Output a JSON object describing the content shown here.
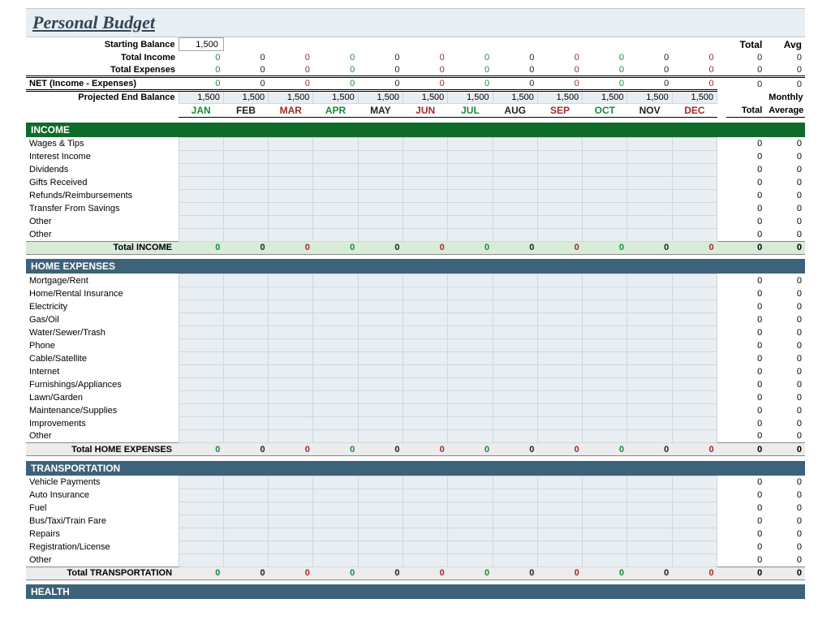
{
  "title": "Personal Budget",
  "colors": {
    "title_bg": "#e8eef2",
    "title_text": "#334455",
    "income_hdr": "#0e6b2a",
    "section_hdr": "#3e6279",
    "cell_bg": "#e8eef2",
    "cell_border": "#d0d6dc",
    "income_total_bg": "#d8ecd8",
    "exp_total_bg": "#ececec"
  },
  "months": [
    {
      "abbr": "JAN",
      "color": "#1a8a3a"
    },
    {
      "abbr": "FEB",
      "color": "#222222"
    },
    {
      "abbr": "MAR",
      "color": "#a02a2a"
    },
    {
      "abbr": "APR",
      "color": "#1a8a3a"
    },
    {
      "abbr": "MAY",
      "color": "#222222"
    },
    {
      "abbr": "JUN",
      "color": "#a02a2a"
    },
    {
      "abbr": "JUL",
      "color": "#1a8a3a"
    },
    {
      "abbr": "AUG",
      "color": "#222222"
    },
    {
      "abbr": "SEP",
      "color": "#a02a2a"
    },
    {
      "abbr": "OCT",
      "color": "#1a8a3a"
    },
    {
      "abbr": "NOV",
      "color": "#222222"
    },
    {
      "abbr": "DEC",
      "color": "#a02a2a"
    }
  ],
  "agg_headers": {
    "total": "Total",
    "avg": "Avg",
    "monthly": "Monthly",
    "total2": "Total",
    "average": "Average"
  },
  "summary": {
    "starting_balance": {
      "label": "Starting Balance",
      "value": "1,500"
    },
    "total_income": {
      "label": "Total Income",
      "values": [
        "0",
        "0",
        "0",
        "0",
        "0",
        "0",
        "0",
        "0",
        "0",
        "0",
        "0",
        "0"
      ],
      "total": "0",
      "avg": "0"
    },
    "total_expenses": {
      "label": "Total Expenses",
      "values": [
        "0",
        "0",
        "0",
        "0",
        "0",
        "0",
        "0",
        "0",
        "0",
        "0",
        "0",
        "0"
      ],
      "total": "0",
      "avg": "0"
    },
    "net": {
      "label": "NET (Income - Expenses)",
      "values": [
        "0",
        "0",
        "0",
        "0",
        "0",
        "0",
        "0",
        "0",
        "0",
        "0",
        "0",
        "0"
      ],
      "total": "0",
      "avg": "0"
    },
    "projected": {
      "label": "Projected End Balance",
      "values": [
        "1,500",
        "1,500",
        "1,500",
        "1,500",
        "1,500",
        "1,500",
        "1,500",
        "1,500",
        "1,500",
        "1,500",
        "1,500",
        "1,500"
      ]
    }
  },
  "sections": [
    {
      "key": "income",
      "title": "INCOME",
      "class": "sec-income",
      "total_label": "Total INCOME",
      "total_class": "income-total",
      "items": [
        "Wages & Tips",
        "Interest Income",
        "Dividends",
        "Gifts Received",
        "Refunds/Reimbursements",
        "Transfer From Savings",
        "Other",
        "Other"
      ]
    },
    {
      "key": "home",
      "title": "HOME EXPENSES",
      "class": "sec-dark",
      "total_label": "Total HOME EXPENSES",
      "total_class": "exp-total",
      "items": [
        "Mortgage/Rent",
        "Home/Rental Insurance",
        "Electricity",
        "Gas/Oil",
        "Water/Sewer/Trash",
        "Phone",
        "Cable/Satellite",
        "Internet",
        "Furnishings/Appliances",
        "Lawn/Garden",
        "Maintenance/Supplies",
        "Improvements",
        "Other"
      ]
    },
    {
      "key": "transport",
      "title": "TRANSPORTATION",
      "class": "sec-dark",
      "total_label": "Total TRANSPORTATION",
      "total_class": "exp-total",
      "items": [
        "Vehicle Payments",
        "Auto Insurance",
        "Fuel",
        "Bus/Taxi/Train Fare",
        "Repairs",
        "Registration/License",
        "Other"
      ]
    },
    {
      "key": "health",
      "title": "HEALTH",
      "class": "sec-dark",
      "total_label": null,
      "items": []
    }
  ],
  "zero": "0"
}
